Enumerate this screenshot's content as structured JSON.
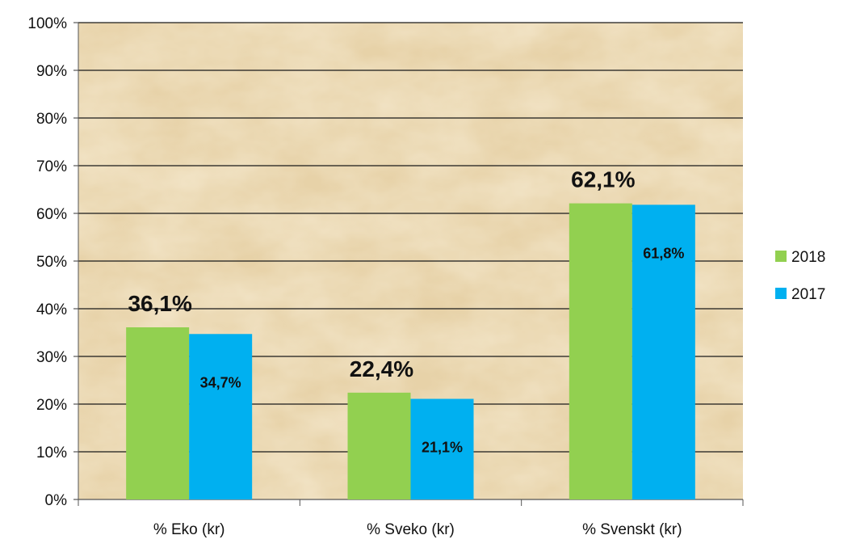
{
  "chart_data": {
    "type": "bar",
    "categories": [
      "% Eko (kr)",
      "% Sveko (kr)",
      "% Svenskt (kr)"
    ],
    "series": [
      {
        "name": "2018",
        "values": [
          36.1,
          22.4,
          62.1
        ],
        "color": "#92d050",
        "labels": [
          "36,1%",
          "22,4%",
          "62,1%"
        ],
        "label_style": "above-large"
      },
      {
        "name": "2017",
        "values": [
          34.7,
          21.1,
          61.8
        ],
        "color": "#00b0f0",
        "labels": [
          "34,7%",
          "21,1%",
          "61,8%"
        ],
        "label_style": "inside-small"
      }
    ],
    "y_ticks": [
      {
        "value": 0,
        "label": "0%"
      },
      {
        "value": 10,
        "label": "10%"
      },
      {
        "value": 20,
        "label": "20%"
      },
      {
        "value": 30,
        "label": "30%"
      },
      {
        "value": 40,
        "label": "40%"
      },
      {
        "value": 50,
        "label": "50%"
      },
      {
        "value": 60,
        "label": "60%"
      },
      {
        "value": 70,
        "label": "70%"
      },
      {
        "value": 80,
        "label": "80%"
      },
      {
        "value": 90,
        "label": "90%"
      },
      {
        "value": 100,
        "label": "100%"
      }
    ],
    "ylim": [
      0,
      100
    ],
    "grid": true,
    "legend_position": "right",
    "plot_background": "#e7d2a8",
    "title": "",
    "xlabel": "",
    "ylabel": ""
  }
}
